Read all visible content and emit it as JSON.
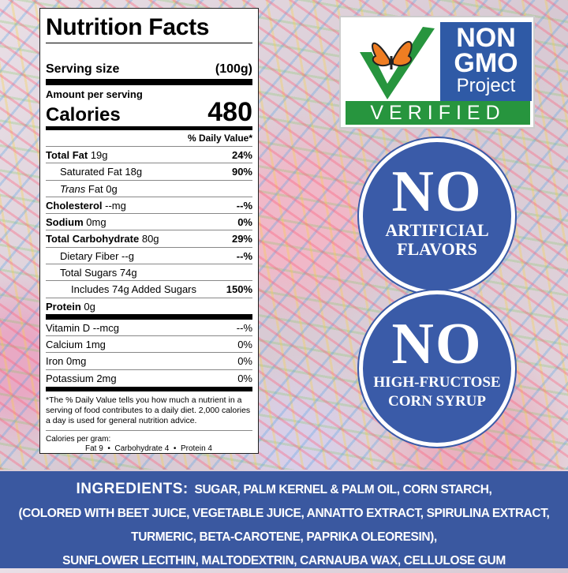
{
  "nutrition": {
    "title": "Nutrition Facts",
    "serving_label": "Serving size",
    "serving_value": "(100g)",
    "amount_per_serving": "Amount per serving",
    "calories_label": "Calories",
    "calories_value": "480",
    "daily_value_header": "% Daily Value*",
    "rows": [
      {
        "label": "Total Fat",
        "amount": "19g",
        "dv": "24%"
      },
      {
        "label": "Saturated Fat",
        "amount": "18g",
        "dv": "90%"
      },
      {
        "label": "Trans",
        "amount": "Fat 0g",
        "dv": ""
      },
      {
        "label": "Cholesterol",
        "amount": "--mg",
        "dv": "--%"
      },
      {
        "label": "Sodium",
        "amount": "0mg",
        "dv": "0%"
      },
      {
        "label": "Total Carbohydrate",
        "amount": "80g",
        "dv": "29%"
      },
      {
        "label": "Dietary Fiber",
        "amount": "--g",
        "dv": "--%"
      },
      {
        "label": "Total Sugars",
        "amount": "74g",
        "dv": ""
      },
      {
        "label": "Includes 74g Added Sugars",
        "amount": "",
        "dv": "150%"
      },
      {
        "label": "Protein",
        "amount": "0g",
        "dv": ""
      },
      {
        "label": "Vitamin D",
        "amount": "--mcg",
        "dv": "--%"
      },
      {
        "label": "Calcium",
        "amount": "1mg",
        "dv": "0%"
      },
      {
        "label": "Iron",
        "amount": "0mg",
        "dv": "0%"
      },
      {
        "label": "Potassium",
        "amount": "2mg",
        "dv": "0%"
      }
    ],
    "footnote": "*The % Daily Value tells you how much a nutrient in a serving of food contributes to a daily diet. 2,000 calories a day is used for general nutrition advice.",
    "calories_per_gram_label": "Calories per gram:",
    "calories_per_gram_values": "Fat 9  •  Carbohydrate 4  •  Protein 4"
  },
  "non_gmo": {
    "line1": "NON",
    "line2": "GMO",
    "line3": "Project",
    "verified": "VERIFIED",
    "colors": {
      "blue": "#2f5aa6",
      "green": "#27953e"
    }
  },
  "badges": [
    {
      "big": "NO",
      "line1": "ARTIFICIAL",
      "line2": "FLAVORS"
    },
    {
      "big": "NO",
      "line1": "HIGH-FRUCTOSE",
      "line2": "CORN SYRUP"
    }
  ],
  "ingredients": {
    "heading": "INGREDIENTS:",
    "lines": [
      "SUGAR, PALM KERNEL & PALM OIL, CORN STARCH,",
      "(COLORED WITH BEET JUICE, VEGETABLE JUICE, ANNATTO EXTRACT, SPIRULINA EXTRACT,",
      "TURMERIC, BETA-CAROTENE, PAPRIKA OLEORESIN),",
      "SUNFLOWER LECITHIN, MALTODEXTRIN, CARNAUBA WAX, CELLULOSE GUM"
    ],
    "background": "#3a58a0"
  }
}
